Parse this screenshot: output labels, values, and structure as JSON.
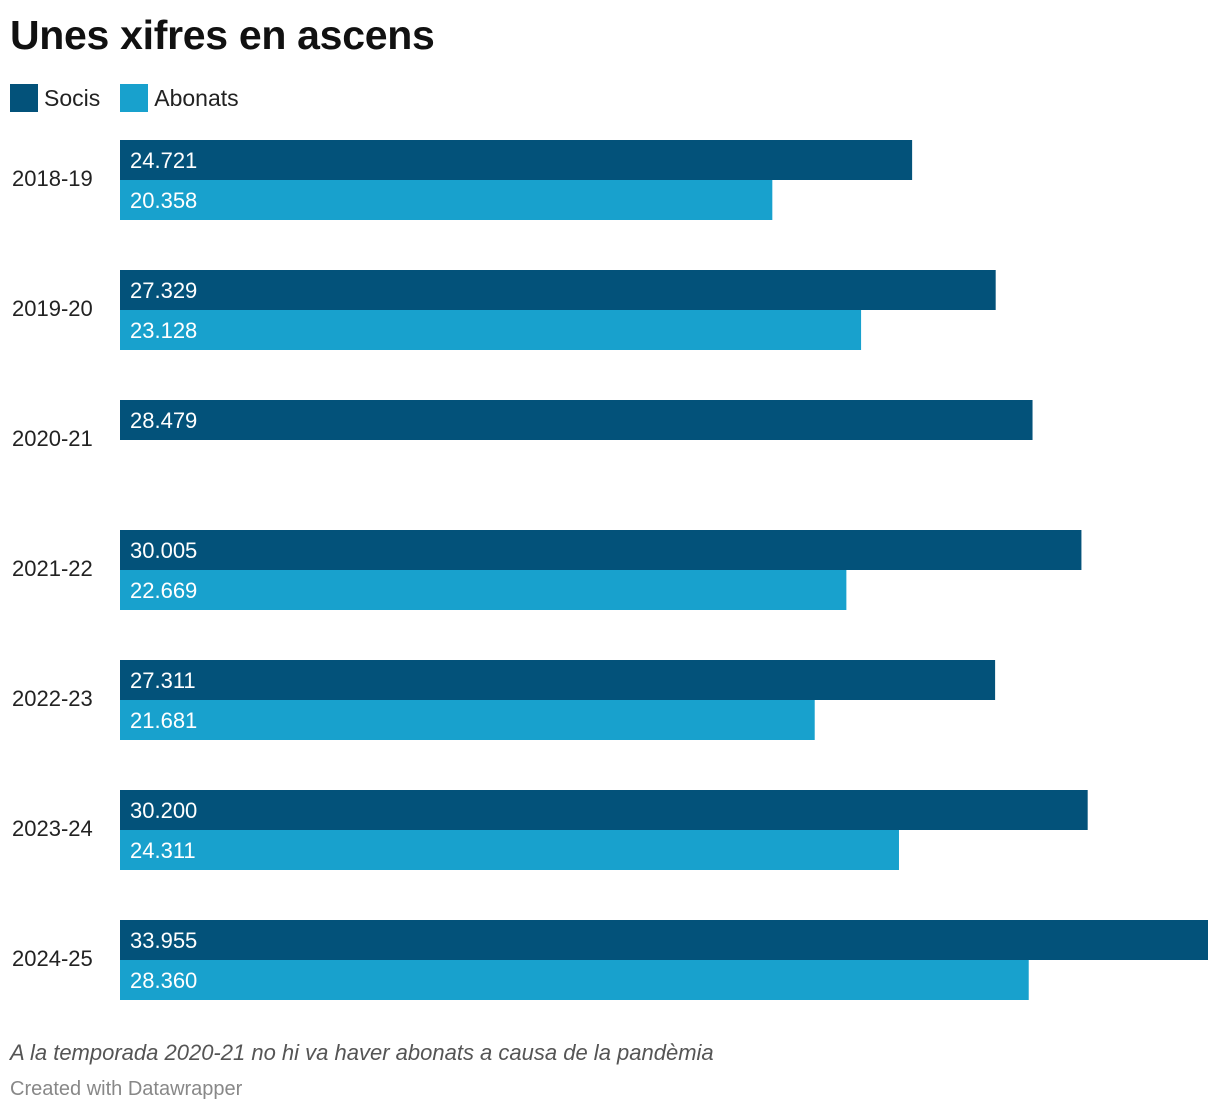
{
  "title": "Unes xifres en ascens",
  "colors": {
    "socis": "#03527a",
    "abonats": "#18a1cd"
  },
  "chart_data": {
    "type": "bar",
    "orientation": "horizontal",
    "categories": [
      "2018-19",
      "2019-20",
      "2020-21",
      "2021-22",
      "2022-23",
      "2023-24",
      "2024-25"
    ],
    "series": [
      {
        "name": "Socis",
        "values": [
          24721,
          27329,
          28479,
          30005,
          27311,
          30200,
          33955
        ],
        "labels": [
          "24.721",
          "27.329",
          "28.479",
          "30.005",
          "27.311",
          "30.200",
          "33.955"
        ]
      },
      {
        "name": "Abonats",
        "values": [
          20358,
          23128,
          null,
          22669,
          21681,
          24311,
          28360
        ],
        "labels": [
          "20.358",
          "23.128",
          "",
          "22.669",
          "21.681",
          "24.311",
          "28.360"
        ]
      }
    ],
    "xlim": [
      0,
      33955
    ],
    "grid": false,
    "legend": "top-left"
  },
  "note": "A la temporada 2020-21 no hi va haver abonats a causa de la pandèmia",
  "credit": "Created with Datawrapper"
}
